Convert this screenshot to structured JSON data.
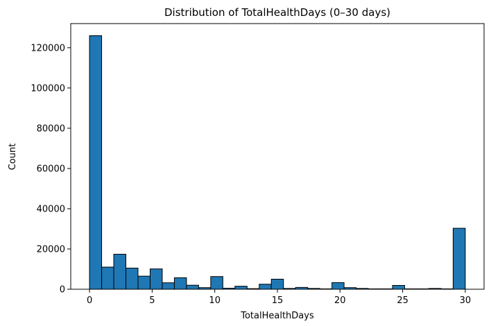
{
  "chart_data": {
    "type": "bar",
    "title": "Distribution of TotalHealthDays (0–30 days)",
    "xlabel": "TotalHealthDays",
    "ylabel": "Count",
    "xlim": [
      -1.5,
      31.5
    ],
    "ylim": [
      0,
      132000
    ],
    "bin_edges": [
      0,
      1,
      2,
      3,
      4,
      5,
      6,
      7,
      8,
      9,
      10,
      11,
      12,
      13,
      14,
      15,
      16,
      17,
      18,
      19,
      20,
      21,
      22,
      23,
      24,
      25,
      26,
      27,
      28,
      29,
      30
    ],
    "values": [
      126000,
      11000,
      17400,
      10500,
      6500,
      10100,
      3200,
      5700,
      2000,
      800,
      6300,
      500,
      1500,
      300,
      2500,
      5000,
      400,
      900,
      400,
      200,
      3300,
      800,
      400,
      200,
      200,
      1900,
      200,
      200,
      400,
      200,
      30300
    ],
    "x_ticks": [
      0,
      5,
      10,
      15,
      20,
      25,
      30
    ],
    "y_ticks": [
      0,
      20000,
      40000,
      60000,
      80000,
      100000,
      120000
    ],
    "bar_color": "#1f77b4",
    "edge_color": "#000000",
    "grid": false,
    "legend": "none"
  }
}
